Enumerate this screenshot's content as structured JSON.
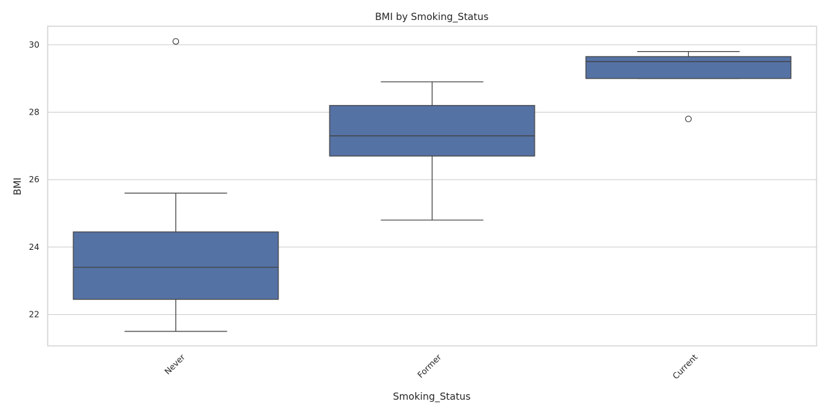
{
  "chart_data": {
    "type": "box",
    "title": "BMI by Smoking_Status",
    "xlabel": "Smoking_Status",
    "ylabel": "BMI",
    "ylim": [
      21.07,
      30.55
    ],
    "yticks": [
      22,
      24,
      26,
      28,
      30
    ],
    "grid": true,
    "categories": [
      "Never",
      "Former",
      "Current"
    ],
    "boxes": [
      {
        "category": "Never",
        "whisker_low": 21.5,
        "q1": 22.45,
        "median": 23.4,
        "q3": 24.45,
        "whisker_high": 25.6,
        "outliers": [
          30.1
        ]
      },
      {
        "category": "Former",
        "whisker_low": 24.8,
        "q1": 26.7,
        "median": 27.3,
        "q3": 28.2,
        "whisker_high": 28.9,
        "outliers": []
      },
      {
        "category": "Current",
        "whisker_low": 29.0,
        "q1": 29.0,
        "median": 29.5,
        "q3": 29.65,
        "whisker_high": 29.8,
        "outliers": [
          27.8
        ]
      }
    ],
    "colors": {
      "box_fill": "#5572a4",
      "box_edge": "#3f3f3f",
      "grid": "#cccccc",
      "frame": "#cccccc",
      "outlier_edge": "#3f3f3f"
    }
  }
}
